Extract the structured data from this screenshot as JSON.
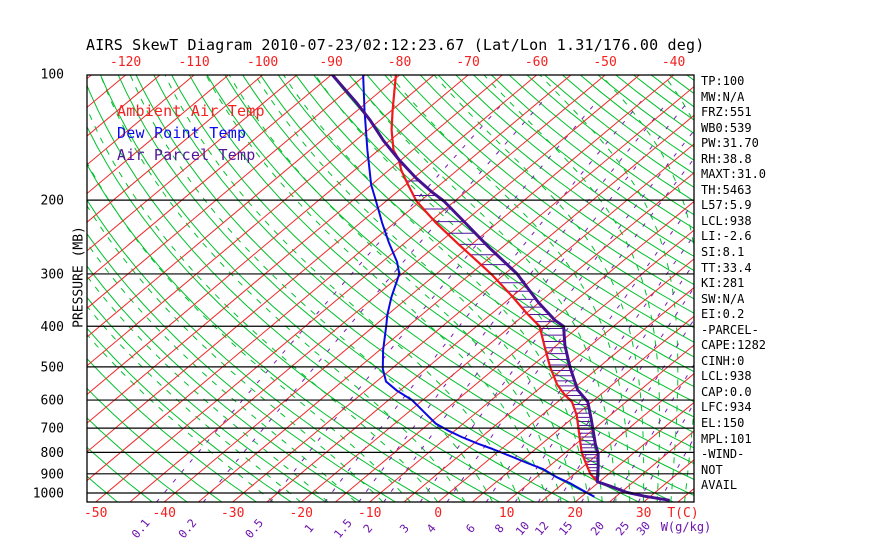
{
  "title": "AIRS SkewT Diagram 2010-07-23/02:12:23.67 (Lat/Lon 1.31/176.00 deg)",
  "legend": {
    "items": [
      {
        "label": "Ambient Air Temp",
        "color": "#f52222"
      },
      {
        "label": "Dew Point Temp",
        "color": "#0a0af0"
      },
      {
        "label": "Air Parcel Temp",
        "color": "#52169b"
      }
    ]
  },
  "axes": {
    "pressure_axis_title": "PRESSURE (MB)",
    "pressure_ticks": [
      100,
      200,
      300,
      400,
      500,
      600,
      700,
      800,
      900,
      1000
    ],
    "top_temp_ticks": [
      -120,
      -110,
      -100,
      -90,
      -80,
      -70,
      -60,
      -50,
      -40
    ],
    "bottom_temp_ticks": [
      -50,
      -40,
      -30,
      -20,
      -10,
      0,
      10,
      20,
      30
    ],
    "temp_unit_label": "T(C)",
    "mixing_unit_label": "W(g/kg)",
    "mixing_ratio_ticks": [
      "0.1",
      "0.2",
      "0.5",
      "1",
      "1.5",
      "2",
      "3",
      "4",
      "6",
      "8",
      "10",
      "12",
      "15",
      "20",
      "25",
      "30"
    ]
  },
  "readout_panel": {
    "lines": [
      "TP:100",
      "MW:N/A",
      "FRZ:551",
      "WB0:539",
      "PW:31.70",
      "RH:38.8",
      "MAXT:31.0",
      "TH:5463",
      "L57:5.9",
      "LCL:938",
      "LI:-2.6",
      "SI:8.1",
      "TT:33.4",
      "KI:281",
      "SW:N/A",
      "EI:0.2",
      "-PARCEL-",
      "CAPE:1282",
      "CINH:0",
      "LCL:938",
      "CAP:0.0",
      "LFC:934",
      "EL:150",
      "MPL:101",
      "-WIND-",
      "NOT",
      "AVAIL"
    ]
  },
  "colors": {
    "isotherm_red": "#ef2929",
    "dry_adiabat_green": "#00c02c",
    "moist_adiabat_green": "#00c02c",
    "mixing_ratio_purple": "#7a1bb4",
    "pressure_line_black": "#000000",
    "ambient_curve": "#f01818",
    "dewpoint_curve": "#0a0ae0",
    "parcel_curve": "#45128f",
    "hatch_purple": "#52169b",
    "axis_label_red": "#f51f1f",
    "axis_label_purple": "#6d14ad"
  },
  "chart_data": {
    "type": "line",
    "title": "AIRS SkewT Diagram 2010-07-23/02:12:23.67 (Lat/Lon 1.31/176.00 deg)",
    "x_axis": {
      "label": "T(C)",
      "bottom_range": [
        -50,
        35
      ],
      "top_range": [
        -125,
        -37
      ],
      "skewed": true
    },
    "y_axis": {
      "label": "PRESSURE (MB)",
      "range": [
        100,
        1052
      ],
      "scale": "log",
      "ticks": [
        100,
        200,
        300,
        400,
        500,
        600,
        700,
        800,
        900,
        1000
      ]
    },
    "series": [
      {
        "name": "Ambient Air Temp",
        "color": "#f01818",
        "points_p_t": [
          [
            100,
            -80.7
          ],
          [
            122,
            -74.9
          ],
          [
            136,
            -71.6
          ],
          [
            152,
            -67.8
          ],
          [
            160,
            -65.4
          ],
          [
            170,
            -63.1
          ],
          [
            184,
            -59.6
          ],
          [
            201,
            -55.6
          ],
          [
            226,
            -49.1
          ],
          [
            255,
            -41.9
          ],
          [
            274,
            -37.5
          ],
          [
            300,
            -32.0
          ],
          [
            337,
            -25.4
          ],
          [
            372,
            -20.0
          ],
          [
            400,
            -15.8
          ],
          [
            450,
            -11.3
          ],
          [
            500,
            -7.2
          ],
          [
            551,
            -3.1
          ],
          [
            583,
            -0.2
          ],
          [
            606,
            2.1
          ],
          [
            652,
            5.1
          ],
          [
            708,
            8.0
          ],
          [
            760,
            10.5
          ],
          [
            802,
            12.4
          ],
          [
            851,
            14.9
          ],
          [
            900,
            17.3
          ],
          [
            940,
            19.7
          ]
        ]
      },
      {
        "name": "Dew Point Temp",
        "color": "#0a0ae0",
        "points_p_t": [
          [
            100,
            -85.5
          ],
          [
            122,
            -79.0
          ],
          [
            152,
            -71.6
          ],
          [
            184,
            -65.0
          ],
          [
            201,
            -61.5
          ],
          [
            226,
            -56.9
          ],
          [
            253,
            -52.3
          ],
          [
            281,
            -47.8
          ],
          [
            300,
            -45.4
          ],
          [
            341,
            -42.5
          ],
          [
            376,
            -40.0
          ],
          [
            400,
            -38.2
          ],
          [
            456,
            -34.5
          ],
          [
            505,
            -31.3
          ],
          [
            542,
            -28.6
          ],
          [
            570,
            -25.4
          ],
          [
            600,
            -21.6
          ],
          [
            638,
            -18.0
          ],
          [
            683,
            -14.0
          ],
          [
            712,
            -10.7
          ],
          [
            735,
            -7.9
          ],
          [
            763,
            -4.3
          ],
          [
            785,
            -1.3
          ],
          [
            816,
            2.5
          ],
          [
            848,
            6.2
          ],
          [
            876,
            9.5
          ],
          [
            917,
            13.0
          ],
          [
            950,
            16.2
          ],
          [
            991,
            19.5
          ],
          [
            1021,
            21.9
          ]
        ]
      },
      {
        "name": "Air Parcel Temp",
        "color": "#45128f",
        "points_p_t": [
          [
            100,
            -90.1
          ],
          [
            117,
            -81.5
          ],
          [
            129,
            -76.4
          ],
          [
            144,
            -71.0
          ],
          [
            160,
            -65.4
          ],
          [
            177,
            -59.7
          ],
          [
            191,
            -55.0
          ],
          [
            201,
            -51.6
          ],
          [
            228,
            -44.3
          ],
          [
            259,
            -37.0
          ],
          [
            300,
            -28.2
          ],
          [
            351,
            -20.1
          ],
          [
            387,
            -14.6
          ],
          [
            400,
            -12.3
          ],
          [
            444,
            -8.8
          ],
          [
            500,
            -4.3
          ],
          [
            567,
            0.8
          ],
          [
            606,
            4.4
          ],
          [
            670,
            8.1
          ],
          [
            708,
            10.1
          ],
          [
            763,
            12.8
          ],
          [
            805,
            14.9
          ],
          [
            865,
            17.2
          ],
          [
            940,
            19.7
          ],
          [
            963,
            22.3
          ],
          [
            996,
            25.8
          ],
          [
            1018,
            29.1
          ],
          [
            1041,
            33.5
          ]
        ]
      }
    ],
    "background_lines": {
      "isotherms_c": {
        "from": -125,
        "to": 40,
        "step": 5
      },
      "dry_adiabats_theta_c": {
        "from": -50,
        "to": 185,
        "step": 5
      },
      "mixing_ratio_lines_g_kg": [
        0.1,
        0.2,
        0.5,
        1,
        1.5,
        2,
        3,
        4,
        6,
        8,
        10,
        12,
        15,
        20,
        25,
        30
      ]
    },
    "hatch": {
      "between": [
        "Ambient Air Temp",
        "Air Parcel Temp"
      ],
      "pressure_from": 165,
      "pressure_to": 930,
      "pressure_step": 15
    },
    "legend_position": "upper-left",
    "grid": "pressure lines 200-1000 MB"
  }
}
